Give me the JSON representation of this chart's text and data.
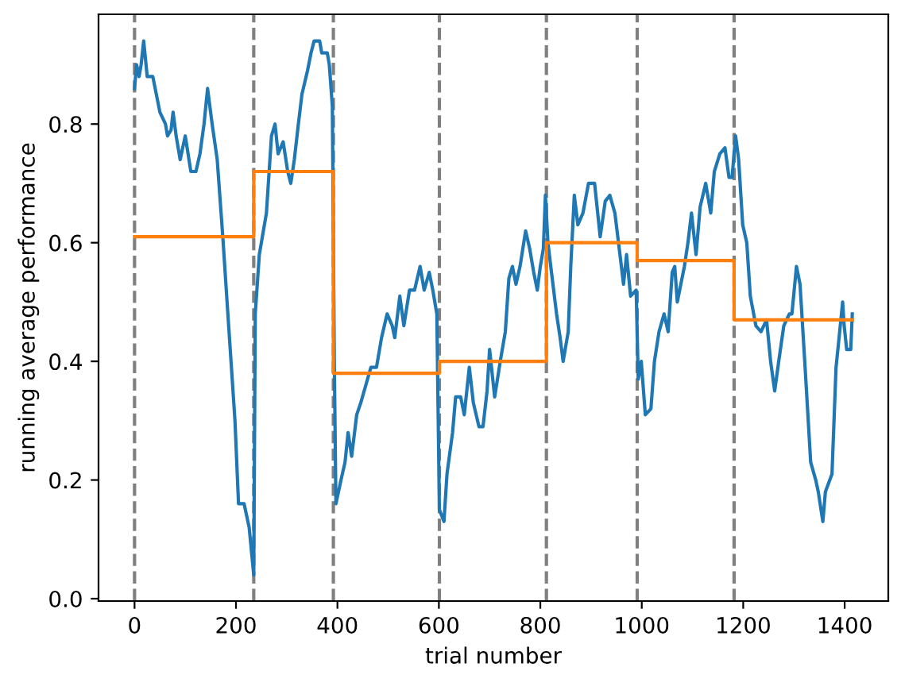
{
  "chart_data": {
    "type": "line",
    "xlabel": "trial number",
    "ylabel": "running average performance",
    "xlim": [
      -71,
      1486
    ],
    "ylim": [
      -0.004,
      0.985
    ],
    "xticks": [
      0,
      200,
      400,
      600,
      800,
      1000,
      1200,
      1400
    ],
    "yticks": [
      {
        "value": 0,
        "label": "0.0"
      },
      0.2,
      0.4,
      0.6,
      0.8
    ],
    "grid": false,
    "marker": "none",
    "line_style": "solid",
    "series": [
      {
        "color": "#1f77b4",
        "x": [
          0,
          4,
          9,
          13,
          18,
          25,
          36,
          43,
          50,
          61,
          65,
          72,
          76,
          82,
          90,
          100,
          111,
          121,
          129,
          137,
          144,
          153,
          163,
          174,
          184,
          198,
          205,
          216,
          226,
          235,
          238,
          246,
          260,
          270,
          277,
          283,
          293,
          302,
          308,
          315,
          323,
          330,
          341,
          348,
          354,
          365,
          369,
          380,
          384,
          390,
          394,
          397,
          407,
          415,
          421,
          428,
          438,
          446,
          456,
          466,
          477,
          487,
          498,
          508,
          513,
          523,
          531,
          542,
          552,
          563,
          571,
          581,
          588,
          596,
          601,
          610,
          616,
          627,
          633,
          643,
          650,
          660,
          668,
          679,
          687,
          695,
          700,
          710,
          721,
          731,
          738,
          745,
          752,
          760,
          771,
          779,
          787,
          794,
          800,
          806,
          810,
          815,
          822,
          832,
          839,
          845,
          855,
          860,
          867,
          874,
          884,
          895,
          907,
          918,
          928,
          937,
          947,
          957,
          964,
          970,
          978,
          989,
          993,
          999,
          1007,
          1018,
          1025,
          1034,
          1044,
          1052,
          1060,
          1065,
          1070,
          1084,
          1091,
          1098,
          1107,
          1115,
          1126,
          1136,
          1143,
          1154,
          1164,
          1172,
          1178,
          1185,
          1191,
          1199,
          1207,
          1214,
          1225,
          1235,
          1246,
          1254,
          1262,
          1270,
          1280,
          1291,
          1296,
          1305,
          1312,
          1322,
          1333,
          1343,
          1348,
          1357,
          1362,
          1375,
          1383,
          1389,
          1396,
          1399,
          1404,
          1412,
          1415
        ],
        "values": [
          0.86,
          0.9,
          0.88,
          0.9,
          0.94,
          0.88,
          0.88,
          0.85,
          0.82,
          0.8,
          0.78,
          0.79,
          0.82,
          0.78,
          0.74,
          0.78,
          0.72,
          0.72,
          0.75,
          0.8,
          0.86,
          0.8,
          0.74,
          0.61,
          0.48,
          0.3,
          0.16,
          0.16,
          0.12,
          0.04,
          0.48,
          0.58,
          0.65,
          0.78,
          0.8,
          0.75,
          0.77,
          0.72,
          0.7,
          0.74,
          0.8,
          0.85,
          0.89,
          0.92,
          0.94,
          0.94,
          0.92,
          0.92,
          0.9,
          0.83,
          0.39,
          0.16,
          0.2,
          0.23,
          0.28,
          0.24,
          0.31,
          0.33,
          0.36,
          0.39,
          0.39,
          0.44,
          0.48,
          0.46,
          0.44,
          0.51,
          0.46,
          0.52,
          0.52,
          0.56,
          0.52,
          0.55,
          0.52,
          0.48,
          0.15,
          0.13,
          0.21,
          0.28,
          0.34,
          0.34,
          0.31,
          0.39,
          0.33,
          0.29,
          0.29,
          0.35,
          0.42,
          0.34,
          0.4,
          0.45,
          0.54,
          0.56,
          0.53,
          0.56,
          0.62,
          0.59,
          0.55,
          0.52,
          0.56,
          0.59,
          0.68,
          0.6,
          0.55,
          0.48,
          0.44,
          0.4,
          0.45,
          0.56,
          0.68,
          0.63,
          0.65,
          0.7,
          0.7,
          0.61,
          0.67,
          0.68,
          0.65,
          0.58,
          0.53,
          0.58,
          0.51,
          0.52,
          0.37,
          0.4,
          0.31,
          0.32,
          0.4,
          0.45,
          0.48,
          0.45,
          0.55,
          0.56,
          0.5,
          0.56,
          0.6,
          0.65,
          0.58,
          0.66,
          0.7,
          0.65,
          0.72,
          0.75,
          0.76,
          0.71,
          0.71,
          0.78,
          0.74,
          0.63,
          0.6,
          0.51,
          0.46,
          0.45,
          0.47,
          0.4,
          0.35,
          0.4,
          0.46,
          0.48,
          0.48,
          0.56,
          0.53,
          0.39,
          0.23,
          0.2,
          0.18,
          0.13,
          0.18,
          0.21,
          0.39,
          0.44,
          0.5,
          0.46,
          0.42,
          0.42,
          0.48
        ]
      },
      {
        "type": "step",
        "color": "#ff7f0e",
        "x": [
          0,
          235,
          392,
          601,
          812,
          991,
          1182,
          1415
        ],
        "values": [
          0.61,
          0.72,
          0.38,
          0.4,
          0.6,
          0.57,
          0.47,
          0.47
        ]
      }
    ],
    "ref_lines": [
      {
        "axis": "x",
        "value": 0,
        "color": "#808080",
        "line_style": "dashed"
      },
      {
        "axis": "x",
        "value": 235,
        "color": "#808080",
        "line_style": "dashed"
      },
      {
        "axis": "x",
        "value": 392,
        "color": "#808080",
        "line_style": "dashed"
      },
      {
        "axis": "x",
        "value": 601,
        "color": "#808080",
        "line_style": "dashed"
      },
      {
        "axis": "x",
        "value": 812,
        "color": "#808080",
        "line_style": "dashed"
      },
      {
        "axis": "x",
        "value": 991,
        "color": "#808080",
        "line_style": "dashed"
      },
      {
        "axis": "x",
        "value": 1182,
        "color": "#808080",
        "line_style": "dashed"
      }
    ]
  }
}
